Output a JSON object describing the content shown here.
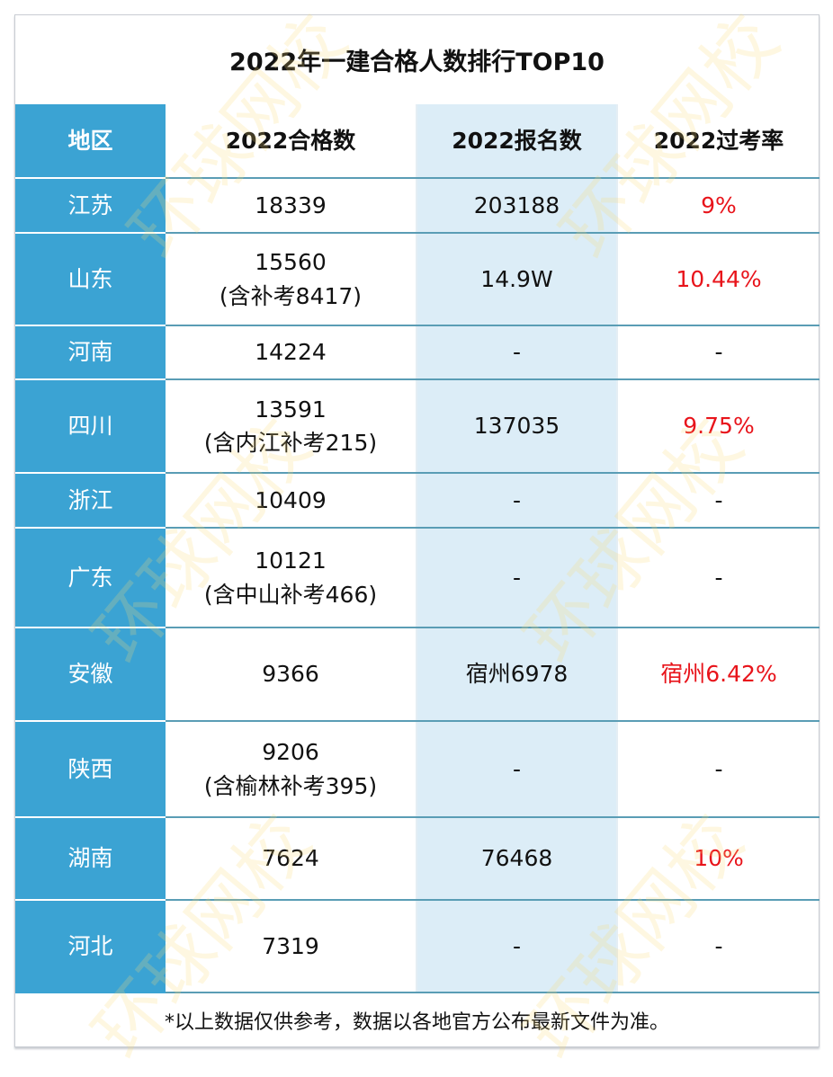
{
  "title": "2022年一建合格人数排行TOP10",
  "headers": [
    "地区",
    "2022合格数",
    "2022报名数",
    "2022过考率"
  ],
  "rows": [
    {
      "region": "江苏",
      "passed": "18339",
      "passed_note": "",
      "registered": "203188",
      "rate": "9%"
    },
    {
      "region": "山东",
      "passed": "15560",
      "passed_note": "(含补考8417)",
      "registered": "14.9W",
      "rate": "10.44%"
    },
    {
      "region": "河南",
      "passed": "14224",
      "passed_note": "",
      "registered": "-",
      "rate": "-"
    },
    {
      "region": "四川",
      "passed": "13591",
      "passed_note": "(含内江补考215)",
      "registered": "137035",
      "rate": "9.75%"
    },
    {
      "region": "浙江",
      "passed": "10409",
      "passed_note": "",
      "registered": "-",
      "rate": "-"
    },
    {
      "region": "广东",
      "passed": "10121",
      "passed_note": "(含中山补考466)",
      "registered": "-",
      "rate": "-"
    },
    {
      "region": "安徽",
      "passed": "9366",
      "passed_note": "",
      "registered": "宿州6978",
      "rate": "宿州6.42%"
    },
    {
      "region": "陕西",
      "passed": "9206",
      "passed_note": "(含榆林补考395)",
      "registered": "-",
      "rate": "-"
    },
    {
      "region": "湖南",
      "passed": "7624",
      "passed_note": "",
      "registered": "76468",
      "rate": "10%"
    },
    {
      "region": "河北",
      "passed": "7319",
      "passed_note": "",
      "registered": "-",
      "rate": "-"
    }
  ],
  "footer": "*以上数据仅供参考，数据以各地官方公布最新文件为准。",
  "watermark": "环球网校",
  "colors": {
    "region_column": "#3ba3d3",
    "registered_column": "#dcedf7",
    "rate_text": "#e8141b",
    "row_line": "#5a9db5"
  }
}
